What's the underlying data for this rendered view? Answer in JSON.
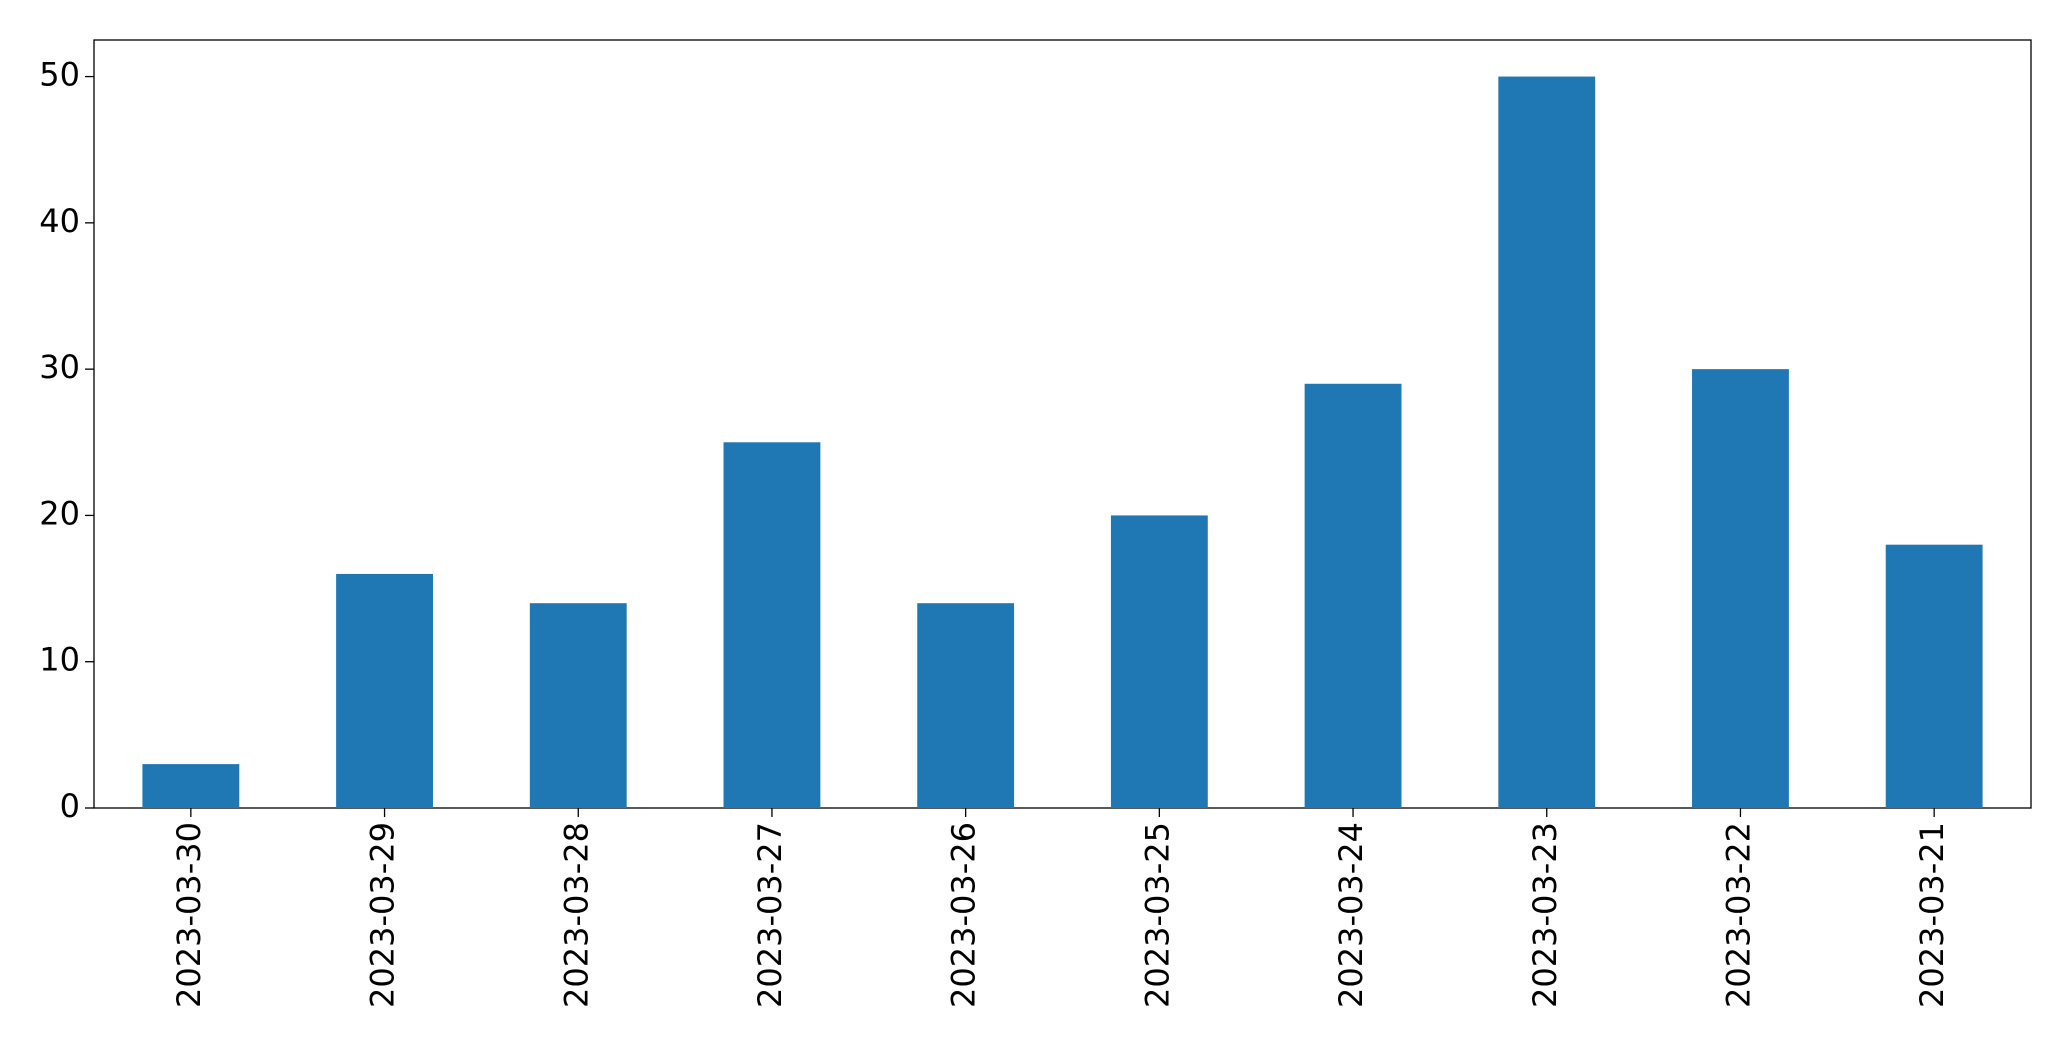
{
  "chart_data": {
    "type": "bar",
    "categories": [
      "2023-03-30",
      "2023-03-29",
      "2023-03-28",
      "2023-03-27",
      "2023-03-26",
      "2023-03-25",
      "2023-03-24",
      "2023-03-23",
      "2023-03-22",
      "2023-03-21"
    ],
    "values": [
      3,
      16,
      14,
      25,
      14,
      20,
      29,
      50,
      30,
      18
    ],
    "color": "#1f77b4",
    "ylim": [
      0,
      52.5
    ],
    "yticks": [
      0,
      10,
      20,
      30,
      40,
      50
    ],
    "grid": false
  }
}
